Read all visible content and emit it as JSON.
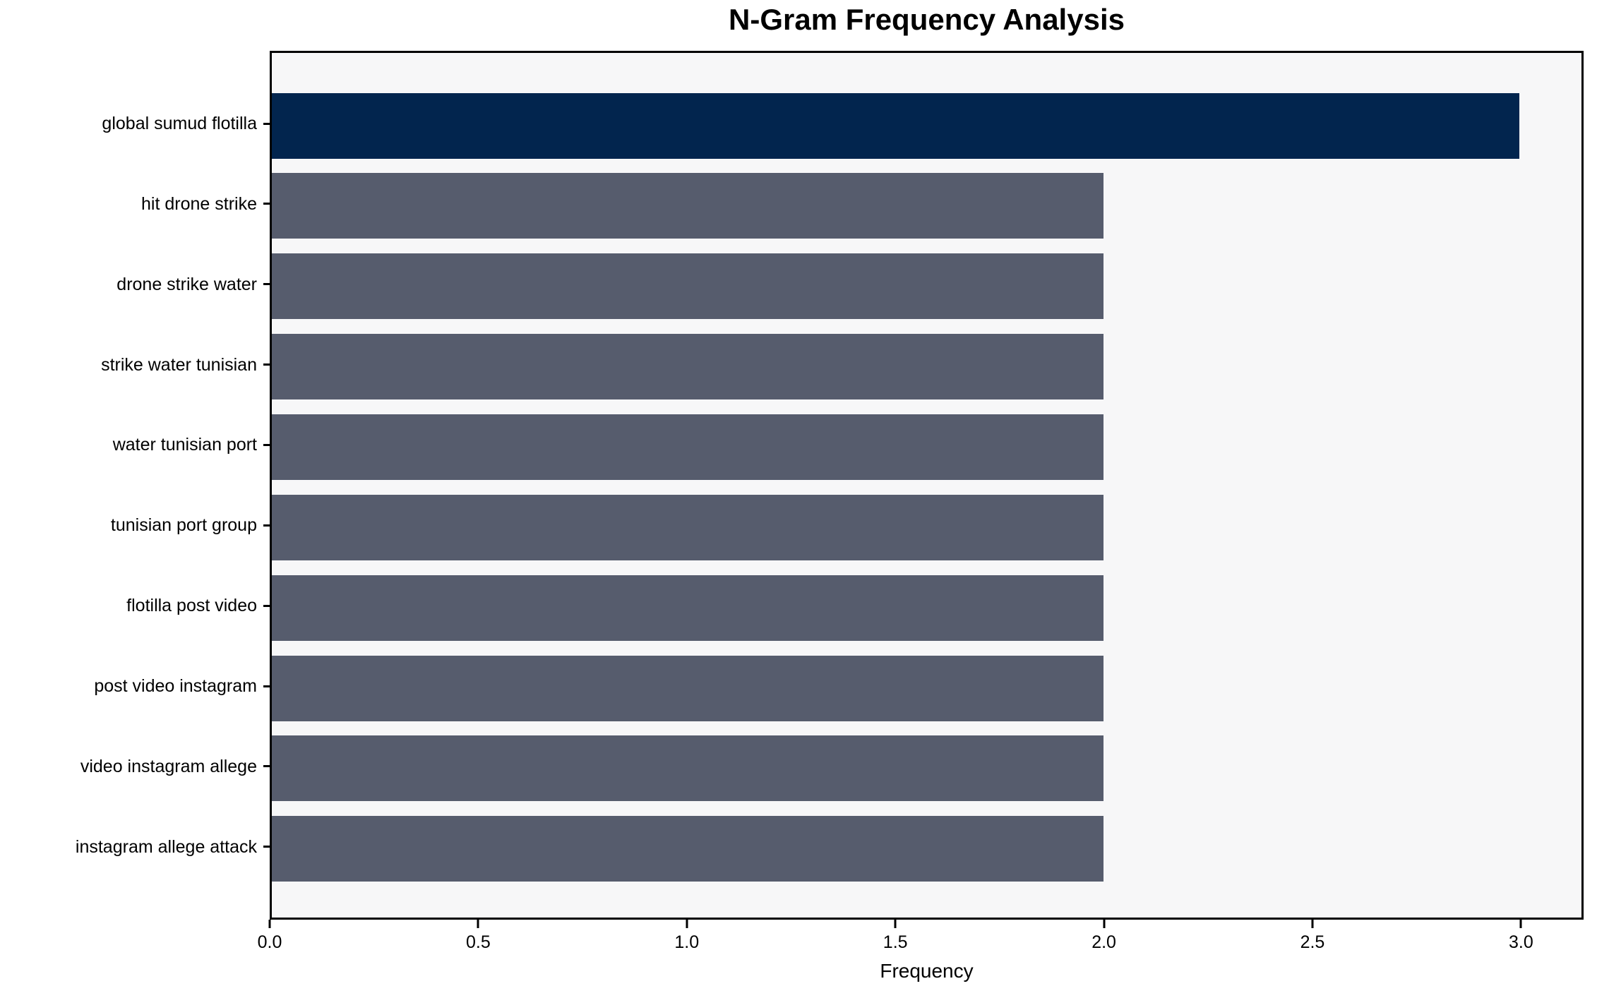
{
  "chart_data": {
    "type": "bar",
    "orientation": "horizontal",
    "title": "N-Gram Frequency Analysis",
    "xlabel": "Frequency",
    "ylabel": "",
    "categories": [
      "global sumud flotilla",
      "hit drone strike",
      "drone strike water",
      "strike water tunisian",
      "water tunisian port",
      "tunisian port group",
      "flotilla post video",
      "post video instagram",
      "video instagram allege",
      "instagram allege attack"
    ],
    "values": [
      3,
      2,
      2,
      2,
      2,
      2,
      2,
      2,
      2,
      2
    ],
    "bar_colors": [
      "#02254E",
      "#565C6D",
      "#565C6D",
      "#565C6D",
      "#565C6D",
      "#565C6D",
      "#565C6D",
      "#565C6D",
      "#565C6D",
      "#565C6D"
    ],
    "xticks": [
      "0.0",
      "0.5",
      "1.0",
      "1.5",
      "2.0",
      "2.5",
      "3.0"
    ],
    "xtick_values": [
      0,
      0.5,
      1,
      1.5,
      2,
      2.5,
      3
    ],
    "xlim": [
      0,
      3.15
    ],
    "grid": false,
    "legend": null,
    "colors": {
      "highlight_bar": "#02254E",
      "default_bar": "#565C6D",
      "plot_background": "#F7F7F8",
      "figure_background": "#FFFFFF",
      "axis": "#000000",
      "text": "#000000"
    }
  }
}
